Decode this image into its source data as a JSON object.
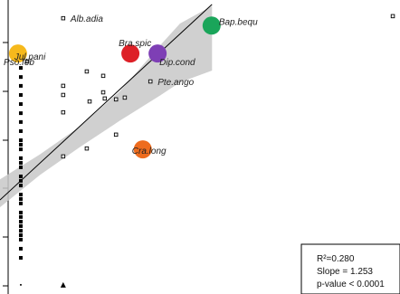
{
  "chart_data": {
    "type": "scatter",
    "title": "",
    "xlabel": "",
    "ylabel": "",
    "grid": false,
    "xlim": [
      0,
      100
    ],
    "ylim": [
      0,
      100
    ],
    "fit": {
      "slope": 1.253,
      "line": [
        [
          0,
          32.0
        ],
        [
          53.0,
          98.5
        ]
      ],
      "band_upper": [
        [
          0,
          39.0
        ],
        [
          10,
          47.5
        ],
        [
          20,
          57.0
        ],
        [
          30,
          69.0
        ],
        [
          40,
          84.5
        ],
        [
          45,
          92.0
        ],
        [
          53,
          98.0
        ]
      ],
      "band_lower": [
        [
          53,
          76.0
        ],
        [
          45,
          72.0
        ],
        [
          40,
          67.5
        ],
        [
          30,
          59.0
        ],
        [
          20,
          50.0
        ],
        [
          10,
          40.5
        ],
        [
          0,
          29.5
        ]
      ]
    },
    "species": [
      {
        "name": "Alb.adia",
        "x": 15.8,
        "y": 93.8,
        "color": "none"
      },
      {
        "name": "Bap.bequ",
        "x": 52.9,
        "y": 91.3,
        "color": "#1aa55a"
      },
      {
        "name": "Bra.spic",
        "x": 32.6,
        "y": 81.8,
        "color": "#dd2027"
      },
      {
        "name": "Dip.cond",
        "x": 39.4,
        "y": 81.8,
        "color": "#7e3fb5"
      },
      {
        "name": "Pte.ango",
        "x": 37.6,
        "y": 72.3,
        "color": "none"
      },
      {
        "name": "Jul.pani",
        "x": 4.5,
        "y": 81.8,
        "color": "#f6b91c"
      },
      {
        "name": "Pso.feb",
        "x": 6.8,
        "y": 79.1,
        "color": "none"
      },
      {
        "name": "Cra.long",
        "x": 35.7,
        "y": 49.2,
        "color": "#ee6c1e"
      }
    ],
    "open_points": [
      [
        21.7,
        75.7
      ],
      [
        25.8,
        74.2
      ],
      [
        15.8,
        70.8
      ],
      [
        15.8,
        67.7
      ],
      [
        22.4,
        65.5
      ],
      [
        25.8,
        68.6
      ],
      [
        26.2,
        66.5
      ],
      [
        29.0,
        66.2
      ],
      [
        31.2,
        66.8
      ],
      [
        15.8,
        61.8
      ],
      [
        29.0,
        54.2
      ],
      [
        21.7,
        49.5
      ],
      [
        15.8,
        46.8
      ],
      [
        98.2,
        94.5
      ],
      [
        92.3,
        3.1
      ]
    ],
    "filled_squares": [
      [
        5.2,
        52.3
      ],
      [
        5.2,
        49.2
      ],
      [
        5.2,
        46.2
      ],
      [
        5.2,
        43.1
      ],
      [
        5.2,
        40.0
      ],
      [
        5.2,
        36.9
      ],
      [
        5.2,
        33.8
      ],
      [
        5.2,
        30.8
      ],
      [
        5.2,
        27.7
      ],
      [
        5.2,
        24.6
      ],
      [
        5.2,
        21.5
      ],
      [
        5.2,
        18.5
      ],
      [
        5.2,
        15.4
      ],
      [
        5.2,
        12.3
      ],
      [
        5.2,
        20.0
      ],
      [
        5.2,
        26.2
      ],
      [
        5.2,
        32.3
      ],
      [
        5.2,
        38.5
      ],
      [
        5.2,
        44.6
      ],
      [
        5.2,
        50.8
      ],
      [
        5.2,
        55.4
      ],
      [
        5.2,
        58.5
      ],
      [
        5.2,
        61.5
      ],
      [
        5.2,
        64.6
      ],
      [
        5.2,
        67.7
      ],
      [
        5.2,
        70.8
      ],
      [
        5.2,
        76.9
      ],
      [
        5.2,
        73.8
      ],
      [
        5.2,
        20.0
      ],
      [
        5.2,
        23.1
      ]
    ],
    "filled_triangle": [
      15.8,
      3.1
    ],
    "small_dot": [
      5.2,
      3.1
    ],
    "annotation": {
      "r2": "R²=0.280",
      "slope": "Slope = 1.253",
      "pvalue": "p-value < 0.0001"
    }
  }
}
